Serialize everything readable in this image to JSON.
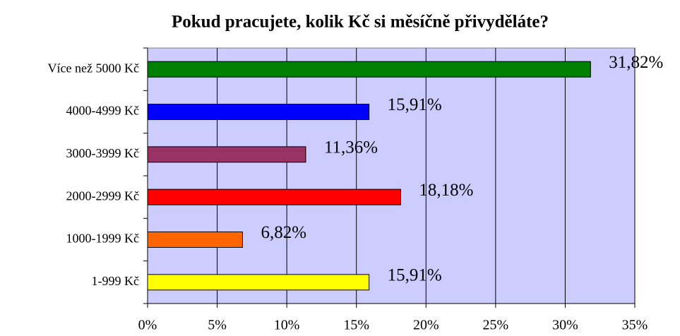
{
  "chart_data": {
    "type": "barh",
    "title": "Pokud pracujete, kolik Kč si měsíčně přivyděláte?",
    "categories": [
      "Více než 5000 Kč",
      "4000-4999 Kč",
      "3000-3999 Kč",
      "2000-2999 Kč",
      "1000-1999 Kč",
      "1-999 Kč"
    ],
    "values": [
      31.82,
      15.91,
      11.36,
      18.18,
      6.82,
      15.91
    ],
    "value_labels": [
      "31,82%",
      "15,91%",
      "11,36%",
      "18,18%",
      "6,82%",
      "15,91%"
    ],
    "colors": [
      "#008000",
      "#0000ff",
      "#993366",
      "#ff0000",
      "#ff6600",
      "#ffff00"
    ],
    "xlim": [
      0,
      35
    ],
    "xticks": [
      {
        "value": 0,
        "label": "0%"
      },
      {
        "value": 5,
        "label": "5%"
      },
      {
        "value": 10,
        "label": "10%"
      },
      {
        "value": 15,
        "label": "15%"
      },
      {
        "value": 20,
        "label": "20%"
      },
      {
        "value": 25,
        "label": "25%"
      },
      {
        "value": 30,
        "label": "30%"
      },
      {
        "value": 35,
        "label": "35%"
      }
    ],
    "grid": true
  }
}
